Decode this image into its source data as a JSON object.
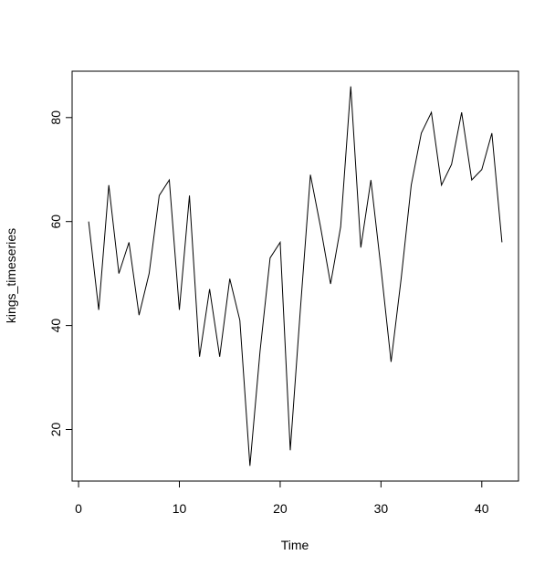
{
  "chart_data": {
    "type": "line",
    "xlabel": "Time",
    "ylabel": "kings_timeseries",
    "x": [
      1,
      2,
      3,
      4,
      5,
      6,
      7,
      8,
      9,
      10,
      11,
      12,
      13,
      14,
      15,
      16,
      17,
      18,
      19,
      20,
      21,
      22,
      23,
      24,
      25,
      26,
      27,
      28,
      29,
      30,
      31,
      32,
      33,
      34,
      35,
      36,
      37,
      38,
      39,
      40,
      41,
      42
    ],
    "series": [
      {
        "color": "#000000",
        "values": [
          60,
          43,
          67,
          50,
          56,
          42,
          50,
          65,
          68,
          43,
          65,
          34,
          47,
          34,
          49,
          41,
          13,
          35,
          53,
          56,
          16,
          43,
          69,
          59,
          48,
          59,
          86,
          55,
          68,
          51,
          33,
          49,
          67,
          77,
          81,
          67,
          71,
          81,
          68,
          70,
          77,
          56
        ]
      }
    ],
    "xlim": [
      -0.64,
      43.64
    ],
    "xticks": [
      0,
      10,
      20,
      30,
      40
    ],
    "ylim": [
      10.08,
      88.92
    ],
    "yticks": [
      20,
      40,
      60,
      80
    ]
  }
}
